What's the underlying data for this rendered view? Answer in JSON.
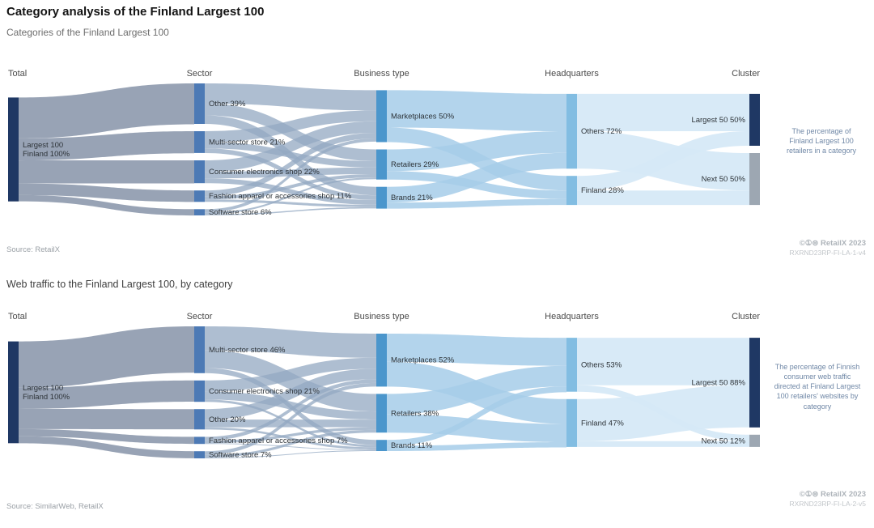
{
  "header": {
    "title": "Category analysis of the Finland Largest 100",
    "subtitle": "Categories of the Finland Largest 100"
  },
  "colors": {
    "navy": "#1f3864",
    "sector_blue": "#4d7ab5",
    "business_blue": "#4b96cc",
    "hq_blue": "#82bde2",
    "cluster_gray": "#9da7b2",
    "flow_total_sector": "#8d99ad",
    "flow_sector_business": "#93a8c2",
    "flow_business_hq": "#a6cde9",
    "flow_hq_cluster": "#d6e9f7"
  },
  "charts": [
    {
      "annotation": "The percentage of Finland Largest 100 retailers in a category",
      "source": "Source: RetailX",
      "credit": "©①⊜ RetailX 2023",
      "code": "RXRND23RP-FI-LA-1-v4",
      "chart_data": {
        "type": "sankey",
        "title": "Categories of the Finland Largest 100",
        "columns": [
          "Total",
          "Sector",
          "Business type",
          "Headquarters",
          "Cluster"
        ],
        "flow_model": "proportional-estimate (link-level values are not labeled in the figure)",
        "stages": [
          {
            "column": "Total",
            "nodes": [
              {
                "label": "Largest 100 Finland",
                "lines": [
                  "Largest 100",
                  "Finland 100%"
                ],
                "value": 100,
                "color": "#1f3864"
              }
            ]
          },
          {
            "column": "Sector",
            "nodes": [
              {
                "label": "Other",
                "value": 39,
                "color": "#4d7ab5"
              },
              {
                "label": "Multi-sector store",
                "value": 21,
                "color": "#4d7ab5"
              },
              {
                "label": "Consumer electronics shop",
                "value": 22,
                "color": "#4d7ab5"
              },
              {
                "label": "Fashion apparel or accessories shop",
                "value": 11,
                "color": "#4d7ab5"
              },
              {
                "label": "Software store",
                "value": 6,
                "color": "#4d7ab5"
              }
            ]
          },
          {
            "column": "Business type",
            "nodes": [
              {
                "label": "Marketplaces",
                "value": 50,
                "color": "#4b96cc"
              },
              {
                "label": "Retailers",
                "value": 29,
                "color": "#4b96cc"
              },
              {
                "label": "Brands",
                "value": 21,
                "color": "#4b96cc"
              }
            ]
          },
          {
            "column": "Headquarters",
            "nodes": [
              {
                "label": "Others",
                "value": 72,
                "color": "#82bde2"
              },
              {
                "label": "Finland",
                "value": 28,
                "color": "#82bde2"
              }
            ]
          },
          {
            "column": "Cluster",
            "nodes": [
              {
                "label": "Largest 50",
                "value": 50,
                "color": "#1f3864"
              },
              {
                "label": "Next 50",
                "value": 50,
                "color": "#9da7b2"
              }
            ]
          }
        ]
      }
    },
    {
      "section_title": "Web traffic to the Finland Largest 100, by category",
      "annotation": "The percentage of Finnish consumer web traffic directed at Finland Largest 100 retailers' websites by category",
      "source": "Source: SimilarWeb, RetailX",
      "credit": "©①⊜ RetailX 2023",
      "code": "RXRND23RP-FI-LA-2-v5",
      "chart_data": {
        "type": "sankey",
        "title": "Web traffic to the Finland Largest 100, by category",
        "columns": [
          "Total",
          "Sector",
          "Business type",
          "Headquarters",
          "Cluster"
        ],
        "flow_model": "proportional-estimate (link-level values are not labeled in the figure)",
        "stages": [
          {
            "column": "Total",
            "nodes": [
              {
                "label": "Largest 100 Finland",
                "lines": [
                  "Largest 100",
                  "Finland 100%"
                ],
                "value": 100,
                "color": "#1f3864"
              }
            ]
          },
          {
            "column": "Sector",
            "nodes": [
              {
                "label": "Multi-sector store",
                "value": 46,
                "color": "#4d7ab5"
              },
              {
                "label": "Consumer electronics shop",
                "value": 21,
                "color": "#4d7ab5"
              },
              {
                "label": "Other",
                "value": 20,
                "color": "#4d7ab5"
              },
              {
                "label": "Fashion apparel or accessories shop",
                "value": 7,
                "color": "#4d7ab5"
              },
              {
                "label": "Software store",
                "value": 7,
                "color": "#4d7ab5"
              }
            ]
          },
          {
            "column": "Business type",
            "nodes": [
              {
                "label": "Marketplaces",
                "value": 52,
                "color": "#4b96cc"
              },
              {
                "label": "Retailers",
                "value": 38,
                "color": "#4b96cc"
              },
              {
                "label": "Brands",
                "value": 11,
                "color": "#4b96cc"
              }
            ]
          },
          {
            "column": "Headquarters",
            "nodes": [
              {
                "label": "Others",
                "value": 53,
                "color": "#82bde2"
              },
              {
                "label": "Finland",
                "value": 47,
                "color": "#82bde2"
              }
            ]
          },
          {
            "column": "Cluster",
            "nodes": [
              {
                "label": "Largest 50",
                "value": 88,
                "color": "#1f3864"
              },
              {
                "label": "Next 50",
                "value": 12,
                "color": "#9da7b2"
              }
            ]
          }
        ]
      }
    }
  ]
}
